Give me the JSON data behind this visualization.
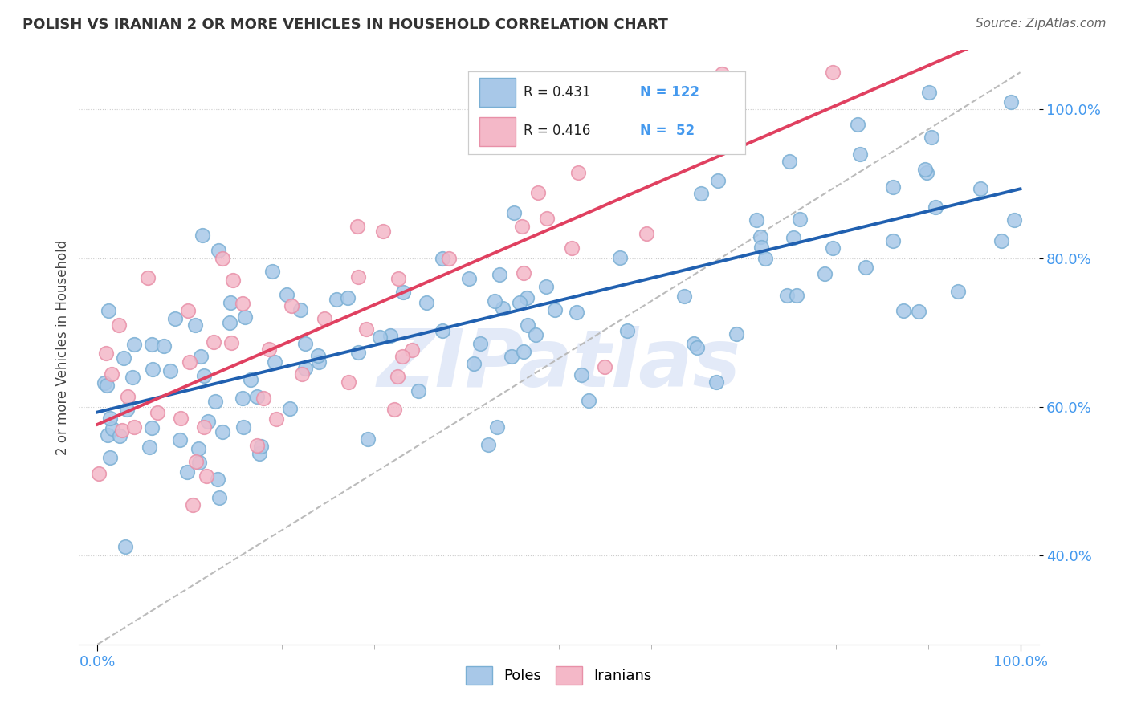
{
  "title": "POLISH VS IRANIAN 2 OR MORE VEHICLES IN HOUSEHOLD CORRELATION CHART",
  "source_text": "Source: ZipAtlas.com",
  "ylabel": "2 or more Vehicles in Household",
  "xlim": [
    -0.02,
    1.02
  ],
  "ylim": [
    0.28,
    1.08
  ],
  "xtick_pos": [
    0.0,
    1.0
  ],
  "xtick_labels": [
    "0.0%",
    "100.0%"
  ],
  "ytick_pos": [
    0.4,
    0.6,
    0.8,
    1.0
  ],
  "ytick_labels": [
    "40.0%",
    "60.0%",
    "80.0%",
    "100.0%"
  ],
  "blue_color": "#a8c8e8",
  "pink_color": "#f4b8c8",
  "blue_edge": "#7aafd4",
  "pink_edge": "#e890a8",
  "blue_line_color": "#2060b0",
  "pink_line_color": "#e04060",
  "dashed_line_color": "#bbbbbb",
  "ytick_color": "#4499ee",
  "xtick_color": "#4499ee",
  "legend_r_color": "#4499ee",
  "legend_series1": "Poles",
  "legend_series2": "Iranians",
  "watermark": "ZIPatlas",
  "blue_N": 122,
  "pink_N": 52,
  "seed": 17
}
